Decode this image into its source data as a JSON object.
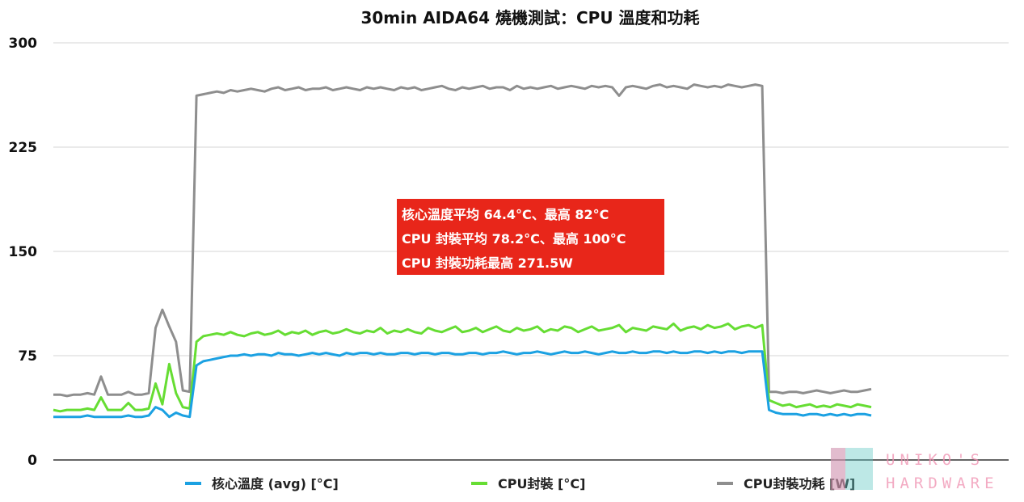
{
  "chart_data": {
    "type": "line",
    "title": "30min AIDA64 燒機測試：CPU 溫度和功耗",
    "ylim": [
      0,
      300
    ],
    "yticks": [
      0,
      75,
      150,
      225,
      300
    ],
    "grid": true,
    "legend_position": "bottom",
    "x": [
      0,
      1,
      2,
      3,
      4,
      5,
      6,
      7,
      8,
      9,
      10,
      11,
      12,
      13,
      14,
      15,
      16,
      17,
      18,
      19,
      20,
      21,
      22,
      23,
      24,
      25,
      26,
      27,
      28,
      29,
      30,
      31,
      32,
      33,
      34,
      35,
      36,
      37,
      38,
      39,
      40,
      41,
      42,
      43,
      44,
      45,
      46,
      47,
      48,
      49,
      50,
      51,
      52,
      53,
      54,
      55,
      56,
      57,
      58,
      59,
      60,
      61,
      62,
      63,
      64,
      65,
      66,
      67,
      68,
      69,
      70,
      71,
      72,
      73,
      74,
      75,
      76,
      77,
      78,
      79,
      80,
      81,
      82,
      83,
      84,
      85,
      86,
      87,
      88,
      89,
      90,
      91,
      92,
      93,
      94,
      95,
      96,
      97,
      98,
      99,
      100,
      101,
      102,
      103,
      104,
      105,
      106,
      107,
      108,
      109,
      110,
      111,
      112,
      113,
      114,
      115,
      116,
      117,
      118,
      119,
      120
    ],
    "series": [
      {
        "name": "核心溫度 (avg) [°C]",
        "color": "#1ba1e2",
        "values": [
          31,
          31,
          31,
          31,
          31,
          32,
          31,
          31,
          31,
          31,
          31,
          32,
          31,
          31,
          32,
          38,
          36,
          31,
          34,
          32,
          31,
          68,
          71,
          72,
          73,
          74,
          75,
          75,
          76,
          75,
          76,
          76,
          75,
          77,
          76,
          76,
          75,
          76,
          77,
          76,
          77,
          76,
          75,
          77,
          76,
          77,
          77,
          76,
          77,
          76,
          76,
          77,
          77,
          76,
          77,
          77,
          76,
          77,
          77,
          76,
          76,
          77,
          77,
          76,
          77,
          77,
          78,
          77,
          76,
          77,
          77,
          78,
          77,
          76,
          77,
          78,
          77,
          77,
          78,
          77,
          76,
          77,
          78,
          77,
          77,
          78,
          77,
          77,
          78,
          78,
          77,
          78,
          77,
          77,
          78,
          78,
          77,
          78,
          77,
          78,
          78,
          77,
          78,
          78,
          78,
          36,
          34,
          33,
          33,
          33,
          32,
          33,
          33,
          32,
          33,
          32,
          33,
          32,
          33,
          33,
          32
        ]
      },
      {
        "name": "CPU封裝 [°C]",
        "color": "#66dd33",
        "values": [
          36,
          35,
          36,
          36,
          36,
          37,
          36,
          45,
          36,
          36,
          36,
          41,
          36,
          36,
          37,
          55,
          40,
          69,
          48,
          38,
          37,
          85,
          89,
          90,
          91,
          90,
          92,
          90,
          89,
          91,
          92,
          90,
          91,
          93,
          90,
          92,
          91,
          93,
          90,
          92,
          93,
          91,
          92,
          94,
          92,
          91,
          93,
          92,
          95,
          91,
          93,
          92,
          94,
          92,
          91,
          95,
          93,
          92,
          94,
          96,
          92,
          93,
          95,
          92,
          94,
          96,
          93,
          92,
          95,
          93,
          94,
          96,
          92,
          94,
          93,
          96,
          95,
          92,
          94,
          96,
          93,
          94,
          95,
          97,
          92,
          95,
          94,
          93,
          96,
          95,
          94,
          98,
          93,
          95,
          96,
          94,
          97,
          95,
          96,
          98,
          94,
          96,
          97,
          95,
          97,
          43,
          41,
          39,
          40,
          38,
          39,
          40,
          38,
          39,
          38,
          40,
          39,
          38,
          40,
          39,
          38
        ]
      },
      {
        "name": "CPU封裝功耗 [W]",
        "color": "#8e8e8e",
        "values": [
          47,
          47,
          46,
          47,
          47,
          48,
          47,
          60,
          47,
          47,
          47,
          49,
          47,
          47,
          48,
          95,
          108,
          96,
          85,
          50,
          49,
          262,
          263,
          264,
          265,
          264,
          266,
          265,
          266,
          267,
          266,
          265,
          267,
          268,
          266,
          267,
          268,
          266,
          267,
          267,
          268,
          266,
          267,
          268,
          267,
          266,
          268,
          267,
          268,
          267,
          266,
          268,
          267,
          268,
          266,
          267,
          268,
          269,
          267,
          266,
          268,
          267,
          268,
          269,
          267,
          268,
          268,
          266,
          269,
          267,
          268,
          267,
          268,
          269,
          267,
          268,
          269,
          268,
          267,
          269,
          268,
          269,
          268,
          262,
          268,
          269,
          268,
          267,
          269,
          270,
          268,
          269,
          268,
          267,
          270,
          269,
          268,
          269,
          268,
          270,
          269,
          268,
          269,
          270,
          269,
          49,
          49,
          48,
          49,
          49,
          48,
          49,
          50,
          49,
          48,
          49,
          50,
          49,
          49,
          50,
          51
        ]
      }
    ],
    "annotation": {
      "lines": [
        "核心溫度平均 64.4°C、最高 82°C",
        "CPU 封裝平均 78.2°C、最高 100°C",
        "CPU 封裝功耗最高 271.5W"
      ],
      "background": "#e8261a"
    }
  },
  "watermark": {
    "line1": "UNIKO'S",
    "line2": "HARDWARE",
    "colors": {
      "pink": "#ef8fb0",
      "teal": "#5fc7c2"
    }
  }
}
